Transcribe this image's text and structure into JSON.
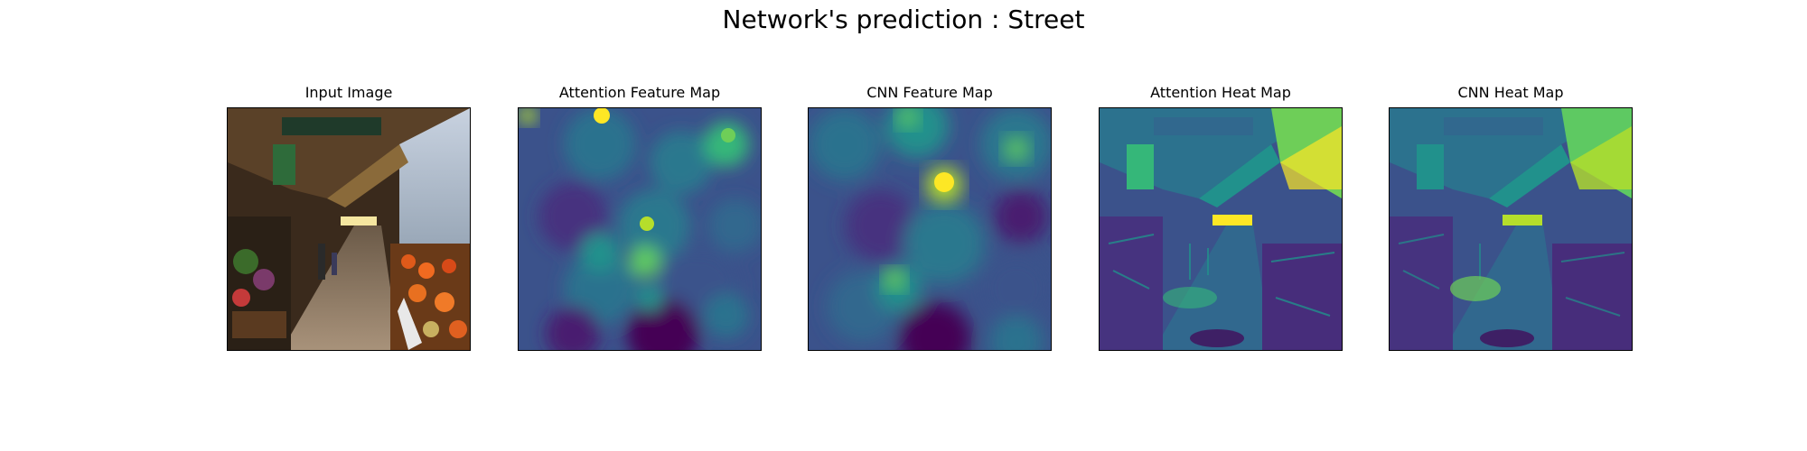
{
  "figure": {
    "suptitle": "Network's prediction : Street"
  },
  "panels": [
    {
      "title": "Input Image",
      "content": "photo of a covered street market with fruit and flower stalls along a sidewalk"
    },
    {
      "title": "Attention Feature Map",
      "content": "viridis colormap blurry blob map"
    },
    {
      "title": "CNN Feature Map",
      "content": "viridis colormap blurry blob map"
    },
    {
      "title": "Attention Heat Map",
      "content": "viridis colormap heat map overlaid on street scene"
    },
    {
      "title": "CNN Heat Map",
      "content": "viridis colormap heat map overlaid on street scene"
    }
  ],
  "colors": {
    "viridis_low": "#440154",
    "viridis_mid": "#21918c",
    "viridis_high": "#fde725"
  }
}
